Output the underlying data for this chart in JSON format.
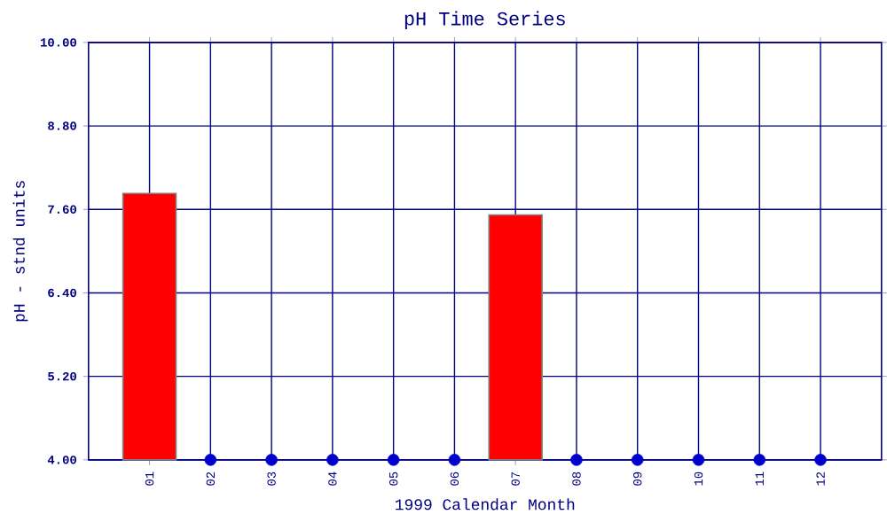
{
  "chart_data": {
    "type": "bar",
    "title": "pH Time Series",
    "xlabel": "1999 Calendar Month",
    "ylabel": "pH - stnd units",
    "categories": [
      "01",
      "02",
      "03",
      "04",
      "05",
      "06",
      "07",
      "08",
      "09",
      "10",
      "11",
      "12"
    ],
    "series": [
      {
        "color": "#ff0000",
        "values": [
          7.83,
          null,
          null,
          null,
          null,
          null,
          7.52,
          null,
          null,
          null,
          null,
          null
        ]
      },
      {
        "type": "scatter",
        "color": "#0000cc",
        "x": [
          "02",
          "03",
          "04",
          "05",
          "06",
          "08",
          "09",
          "10",
          "11",
          "12"
        ],
        "values": [
          4.0,
          4.0,
          4.0,
          4.0,
          4.0,
          4.0,
          4.0,
          4.0,
          4.0,
          4.0
        ]
      }
    ],
    "ylim": [
      4.0,
      10.0
    ],
    "yticks": [
      {
        "value": 4.0,
        "label": "4.00"
      },
      {
        "value": 5.2,
        "label": "5.20"
      },
      {
        "value": 6.4,
        "label": "6.40"
      },
      {
        "value": 7.6,
        "label": "7.60"
      },
      {
        "value": 8.8,
        "label": "8.80"
      },
      {
        "value": 10.0,
        "label": "10.00"
      }
    ],
    "grid": true
  }
}
